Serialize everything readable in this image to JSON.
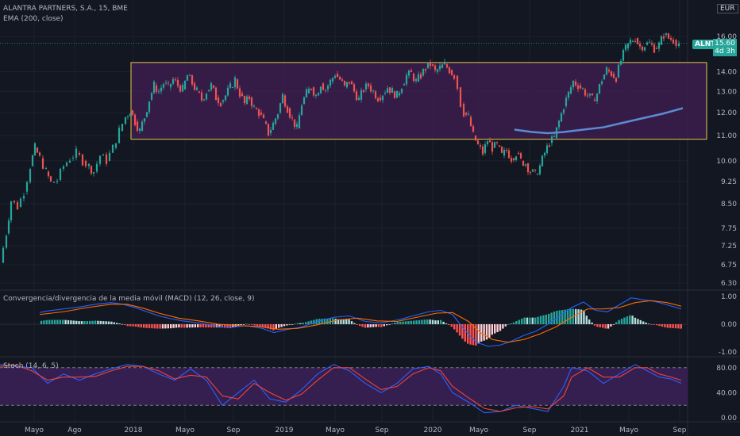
{
  "header": {
    "title": "ALANTRA PARTNERS, S.A., 15, BME",
    "ema_label": "EMA (200, close)",
    "currency": "EUR",
    "ticker": "ALNT",
    "last_price": "15.60",
    "countdown": "4d 3h"
  },
  "chart_data": [
    {
      "type": "candlestick",
      "title": "ALANTRA PARTNERS, S.A., 15, BME",
      "y_ticks": [
        "16.00",
        "14.00",
        "13.00",
        "12.00",
        "11.00",
        "10.00",
        "9.25",
        "8.50",
        "7.75",
        "7.25",
        "6.75",
        "6.30"
      ],
      "x_ticks": [
        "Mayo",
        "Ago",
        "2018",
        "Mayo",
        "Sep",
        "2019",
        "Mayo",
        "Sep",
        "2020",
        "Mayo",
        "Sep",
        "2021",
        "Mayo",
        "Sep"
      ],
      "price_path": [
        [
          0,
          6.8
        ],
        [
          8,
          7.6
        ],
        [
          14,
          8.6
        ],
        [
          22,
          8.4
        ],
        [
          30,
          8.9
        ],
        [
          38,
          9.8
        ],
        [
          44,
          10.5
        ],
        [
          50,
          10.1
        ],
        [
          58,
          9.6
        ],
        [
          64,
          9.2
        ],
        [
          72,
          9.3
        ],
        [
          80,
          9.8
        ],
        [
          88,
          10.1
        ],
        [
          96,
          10.3
        ],
        [
          104,
          10.0
        ],
        [
          112,
          9.8
        ],
        [
          118,
          9.6
        ],
        [
          126,
          10.2
        ],
        [
          134,
          10.0
        ],
        [
          142,
          10.5
        ],
        [
          150,
          11.2
        ],
        [
          158,
          11.8
        ],
        [
          164,
          12.1
        ],
        [
          170,
          11.6
        ],
        [
          176,
          11.2
        ],
        [
          182,
          11.8
        ],
        [
          188,
          12.6
        ],
        [
          194,
          13.3
        ],
        [
          200,
          13.0
        ],
        [
          206,
          13.4
        ],
        [
          212,
          13.2
        ],
        [
          218,
          13.6
        ],
        [
          224,
          13.3
        ],
        [
          230,
          13.1
        ],
        [
          236,
          13.8
        ],
        [
          242,
          13.4
        ],
        [
          248,
          13.0
        ],
        [
          254,
          12.6
        ],
        [
          260,
          13.0
        ],
        [
          266,
          13.3
        ],
        [
          272,
          12.7
        ],
        [
          278,
          12.5
        ],
        [
          284,
          12.8
        ],
        [
          290,
          13.2
        ],
        [
          296,
          13.6
        ],
        [
          302,
          12.9
        ],
        [
          308,
          12.4
        ],
        [
          314,
          12.7
        ],
        [
          320,
          12.2
        ],
        [
          326,
          12.0
        ],
        [
          332,
          11.6
        ],
        [
          338,
          11.1
        ],
        [
          344,
          11.5
        ],
        [
          350,
          12.0
        ],
        [
          356,
          12.8
        ],
        [
          362,
          12.2
        ],
        [
          368,
          11.7
        ],
        [
          374,
          11.3
        ],
        [
          380,
          12.4
        ],
        [
          386,
          12.9
        ],
        [
          392,
          13.2
        ],
        [
          398,
          12.8
        ],
        [
          404,
          13.4
        ],
        [
          410,
          13.1
        ],
        [
          416,
          13.5
        ],
        [
          422,
          13.9
        ],
        [
          428,
          13.6
        ],
        [
          434,
          13.2
        ],
        [
          440,
          13.5
        ],
        [
          446,
          13.0
        ],
        [
          452,
          12.6
        ],
        [
          458,
          13.1
        ],
        [
          464,
          13.3
        ],
        [
          470,
          13.0
        ],
        [
          476,
          12.7
        ],
        [
          482,
          12.9
        ],
        [
          488,
          13.2
        ],
        [
          494,
          13.0
        ],
        [
          500,
          12.8
        ],
        [
          506,
          13.3
        ],
        [
          512,
          13.8
        ],
        [
          518,
          13.9
        ],
        [
          524,
          13.5
        ],
        [
          530,
          13.8
        ],
        [
          536,
          14.2
        ],
        [
          542,
          14.4
        ],
        [
          548,
          14.0
        ],
        [
          554,
          14.2
        ],
        [
          560,
          14.4
        ],
        [
          566,
          14.1
        ],
        [
          572,
          13.8
        ],
        [
          576,
          13.2
        ],
        [
          580,
          12.4
        ],
        [
          584,
          12.0
        ],
        [
          590,
          11.8
        ],
        [
          596,
          11.0
        ],
        [
          602,
          10.6
        ],
        [
          608,
          10.3
        ],
        [
          614,
          10.8
        ],
        [
          620,
          10.5
        ],
        [
          626,
          10.6
        ],
        [
          632,
          10.2
        ],
        [
          638,
          10.4
        ],
        [
          644,
          10.1
        ],
        [
          650,
          10.3
        ],
        [
          656,
          10.0
        ],
        [
          662,
          9.9
        ],
        [
          668,
          9.6
        ],
        [
          674,
          9.5
        ],
        [
          680,
          9.8
        ],
        [
          686,
          10.3
        ],
        [
          692,
          10.7
        ],
        [
          698,
          10.9
        ],
        [
          704,
          11.6
        ],
        [
          710,
          12.3
        ],
        [
          716,
          12.9
        ],
        [
          722,
          13.5
        ],
        [
          728,
          13.3
        ],
        [
          734,
          13.1
        ],
        [
          740,
          12.8
        ],
        [
          746,
          12.6
        ],
        [
          752,
          12.9
        ],
        [
          758,
          13.6
        ],
        [
          764,
          14.1
        ],
        [
          770,
          13.9
        ],
        [
          776,
          13.7
        ],
        [
          782,
          14.6
        ],
        [
          788,
          15.3
        ],
        [
          794,
          15.7
        ],
        [
          800,
          15.9
        ],
        [
          806,
          15.4
        ],
        [
          812,
          15.5
        ],
        [
          818,
          15.6
        ],
        [
          824,
          15.3
        ],
        [
          830,
          15.5
        ],
        [
          836,
          16.1
        ],
        [
          842,
          15.9
        ],
        [
          848,
          15.8
        ],
        [
          855,
          15.6
        ]
      ],
      "ema_path": [
        [
          648,
          11.25
        ],
        [
          670,
          11.15
        ],
        [
          690,
          11.1
        ],
        [
          710,
          11.15
        ],
        [
          735,
          11.25
        ],
        [
          760,
          11.35
        ],
        [
          785,
          11.55
        ],
        [
          810,
          11.75
        ],
        [
          835,
          11.95
        ],
        [
          860,
          12.2
        ]
      ],
      "rectangle": {
        "y_top": 14.5,
        "y_bottom": 10.85
      },
      "last_price": 15.6
    },
    {
      "type": "histogram+line",
      "title": "Convergencia/divergencia de la media móvil (MACD) (12, 26, close, 9)",
      "y_ticks": [
        "1.00",
        "0.00",
        "-1.00"
      ],
      "macd_path": [
        [
          50,
          0.42
        ],
        [
          60,
          0.48
        ],
        [
          80,
          0.55
        ],
        [
          100,
          0.62
        ],
        [
          120,
          0.72
        ],
        [
          140,
          0.78
        ],
        [
          155,
          0.72
        ],
        [
          170,
          0.6
        ],
        [
          185,
          0.45
        ],
        [
          200,
          0.3
        ],
        [
          215,
          0.2
        ],
        [
          230,
          0.12
        ],
        [
          250,
          0.05
        ],
        [
          270,
          -0.05
        ],
        [
          290,
          -0.12
        ],
        [
          310,
          -0.05
        ],
        [
          330,
          -0.15
        ],
        [
          345,
          -0.3
        ],
        [
          360,
          -0.2
        ],
        [
          380,
          -0.1
        ],
        [
          400,
          0.1
        ],
        [
          420,
          0.25
        ],
        [
          440,
          0.3
        ],
        [
          460,
          0.1
        ],
        [
          480,
          0.05
        ],
        [
          500,
          0.15
        ],
        [
          520,
          0.3
        ],
        [
          540,
          0.45
        ],
        [
          555,
          0.5
        ],
        [
          570,
          0.35
        ],
        [
          585,
          -0.2
        ],
        [
          600,
          -0.65
        ],
        [
          615,
          -0.8
        ],
        [
          630,
          -0.75
        ],
        [
          645,
          -0.6
        ],
        [
          660,
          -0.4
        ],
        [
          675,
          -0.25
        ],
        [
          690,
          0.0
        ],
        [
          705,
          0.3
        ],
        [
          720,
          0.6
        ],
        [
          735,
          0.8
        ],
        [
          750,
          0.5
        ],
        [
          765,
          0.45
        ],
        [
          780,
          0.7
        ],
        [
          795,
          0.95
        ],
        [
          810,
          0.88
        ],
        [
          825,
          0.82
        ],
        [
          840,
          0.7
        ],
        [
          858,
          0.55
        ]
      ],
      "signal_path": [
        [
          50,
          0.35
        ],
        [
          80,
          0.45
        ],
        [
          110,
          0.6
        ],
        [
          140,
          0.72
        ],
        [
          160,
          0.72
        ],
        [
          180,
          0.58
        ],
        [
          200,
          0.4
        ],
        [
          225,
          0.22
        ],
        [
          250,
          0.12
        ],
        [
          275,
          0.0
        ],
        [
          300,
          -0.05
        ],
        [
          325,
          -0.08
        ],
        [
          350,
          -0.18
        ],
        [
          375,
          -0.15
        ],
        [
          400,
          -0.02
        ],
        [
          425,
          0.15
        ],
        [
          450,
          0.22
        ],
        [
          475,
          0.12
        ],
        [
          500,
          0.1
        ],
        [
          525,
          0.25
        ],
        [
          550,
          0.4
        ],
        [
          570,
          0.42
        ],
        [
          590,
          0.1
        ],
        [
          605,
          -0.3
        ],
        [
          620,
          -0.55
        ],
        [
          640,
          -0.65
        ],
        [
          660,
          -0.55
        ],
        [
          680,
          -0.35
        ],
        [
          700,
          -0.1
        ],
        [
          720,
          0.25
        ],
        [
          740,
          0.55
        ],
        [
          760,
          0.55
        ],
        [
          780,
          0.6
        ],
        [
          800,
          0.78
        ],
        [
          820,
          0.85
        ],
        [
          840,
          0.78
        ],
        [
          858,
          0.65
        ]
      ]
    },
    {
      "type": "line",
      "title": "Stoch (14, 6, 5)",
      "y_ticks": [
        "80.00",
        "40.00",
        "0.00"
      ],
      "band": [
        20,
        80
      ],
      "k_path": [
        [
          0,
          85
        ],
        [
          20,
          82
        ],
        [
          40,
          80
        ],
        [
          60,
          55
        ],
        [
          80,
          70
        ],
        [
          100,
          60
        ],
        [
          120,
          70
        ],
        [
          140,
          78
        ],
        [
          160,
          85
        ],
        [
          180,
          82
        ],
        [
          200,
          70
        ],
        [
          220,
          60
        ],
        [
          240,
          78
        ],
        [
          260,
          60
        ],
        [
          280,
          20
        ],
        [
          300,
          40
        ],
        [
          320,
          60
        ],
        [
          340,
          30
        ],
        [
          360,
          25
        ],
        [
          380,
          45
        ],
        [
          400,
          70
        ],
        [
          420,
          85
        ],
        [
          440,
          75
        ],
        [
          460,
          55
        ],
        [
          480,
          40
        ],
        [
          500,
          55
        ],
        [
          520,
          78
        ],
        [
          540,
          82
        ],
        [
          555,
          70
        ],
        [
          570,
          40
        ],
        [
          590,
          25
        ],
        [
          610,
          8
        ],
        [
          630,
          10
        ],
        [
          650,
          20
        ],
        [
          670,
          15
        ],
        [
          690,
          10
        ],
        [
          710,
          50
        ],
        [
          720,
          80
        ],
        [
          740,
          75
        ],
        [
          760,
          55
        ],
        [
          780,
          70
        ],
        [
          800,
          85
        ],
        [
          815,
          75
        ],
        [
          830,
          65
        ],
        [
          845,
          62
        ],
        [
          858,
          55
        ]
      ],
      "d_path": [
        [
          0,
          82
        ],
        [
          20,
          84
        ],
        [
          40,
          75
        ],
        [
          60,
          60
        ],
        [
          80,
          65
        ],
        [
          100,
          65
        ],
        [
          120,
          66
        ],
        [
          140,
          75
        ],
        [
          160,
          82
        ],
        [
          180,
          82
        ],
        [
          200,
          75
        ],
        [
          220,
          62
        ],
        [
          240,
          68
        ],
        [
          260,
          65
        ],
        [
          280,
          35
        ],
        [
          300,
          30
        ],
        [
          320,
          55
        ],
        [
          340,
          40
        ],
        [
          360,
          28
        ],
        [
          380,
          38
        ],
        [
          400,
          60
        ],
        [
          420,
          80
        ],
        [
          440,
          80
        ],
        [
          460,
          62
        ],
        [
          480,
          45
        ],
        [
          500,
          50
        ],
        [
          520,
          70
        ],
        [
          540,
          80
        ],
        [
          555,
          75
        ],
        [
          570,
          50
        ],
        [
          590,
          32
        ],
        [
          610,
          15
        ],
        [
          630,
          10
        ],
        [
          650,
          16
        ],
        [
          670,
          18
        ],
        [
          690,
          14
        ],
        [
          710,
          35
        ],
        [
          720,
          65
        ],
        [
          740,
          80
        ],
        [
          760,
          65
        ],
        [
          780,
          65
        ],
        [
          800,
          80
        ],
        [
          815,
          80
        ],
        [
          830,
          70
        ],
        [
          845,
          65
        ],
        [
          858,
          60
        ]
      ]
    }
  ],
  "colors": {
    "up": "#26a69a",
    "down": "#ef5350",
    "ema": "#5b8bd4",
    "rect_border": "#e3c64b",
    "rect_fill": "#3c1d4e",
    "macd": "#2962ff",
    "signal": "#ff6d00",
    "stoch_k": "#2962ff",
    "stoch_d": "#f44336",
    "stoch_band": "#3a1f55"
  }
}
